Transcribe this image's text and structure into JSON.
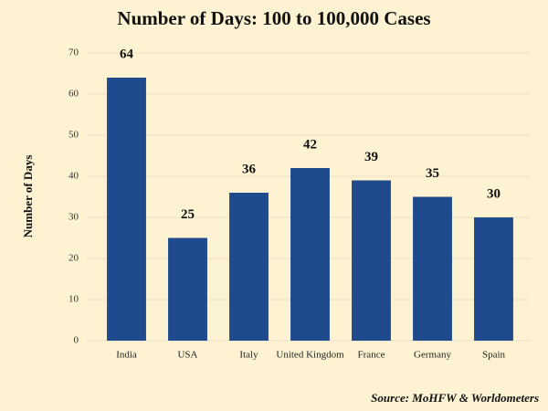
{
  "chart_data": {
    "type": "bar",
    "title": "Number of Days: 100 to 100,000 Cases",
    "y_label": "Number of Days",
    "categories": [
      "India",
      "USA",
      "Italy",
      "United Kingdom",
      "France",
      "Germany",
      "Spain"
    ],
    "values": [
      64,
      25,
      36,
      42,
      39,
      35,
      30
    ],
    "color": "#1f4b8e",
    "ylim": [
      0,
      70
    ],
    "yticks": [
      0,
      10,
      20,
      30,
      40,
      50,
      60,
      70
    ],
    "grid": true,
    "source": "Source: MoHFW & Worldometers"
  }
}
